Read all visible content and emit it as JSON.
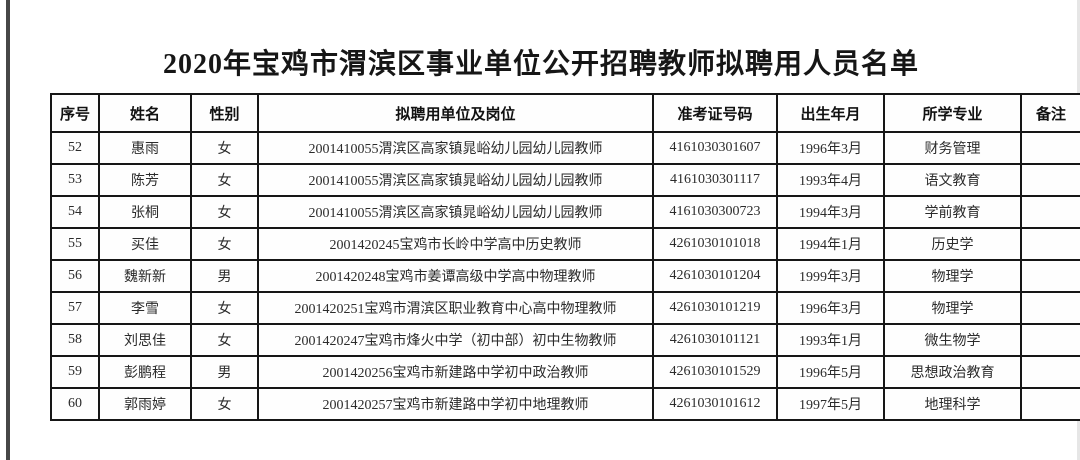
{
  "page": {
    "title": "2020年宝鸡市渭滨区事业单位公开招聘教师拟聘用人员名单"
  },
  "colors": {
    "border": "#161616",
    "text": "#2b2b2b",
    "left_edge": "#474747",
    "background": "#ffffff"
  },
  "table": {
    "columns": [
      {
        "key": "index",
        "label": "序号"
      },
      {
        "key": "name",
        "label": "姓名"
      },
      {
        "key": "gender",
        "label": "性别"
      },
      {
        "key": "unit_position",
        "label": "拟聘用单位及岗位"
      },
      {
        "key": "ticket_no",
        "label": "准考证号码"
      },
      {
        "key": "birth",
        "label": "出生年月"
      },
      {
        "key": "major",
        "label": "所学专业"
      },
      {
        "key": "remarks",
        "label": "备注"
      }
    ],
    "rows": [
      {
        "index": "52",
        "name": "惠雨",
        "gender": "女",
        "unit_position": "2001410055渭滨区高家镇晁峪幼儿园幼儿园教师",
        "ticket_no": "4161030301607",
        "birth": "1996年3月",
        "major": "财务管理",
        "remarks": ""
      },
      {
        "index": "53",
        "name": "陈芳",
        "gender": "女",
        "unit_position": "2001410055渭滨区高家镇晁峪幼儿园幼儿园教师",
        "ticket_no": "4161030301117",
        "birth": "1993年4月",
        "major": "语文教育",
        "remarks": ""
      },
      {
        "index": "54",
        "name": "张桐",
        "gender": "女",
        "unit_position": "2001410055渭滨区高家镇晁峪幼儿园幼儿园教师",
        "ticket_no": "4161030300723",
        "birth": "1994年3月",
        "major": "学前教育",
        "remarks": ""
      },
      {
        "index": "55",
        "name": "买佳",
        "gender": "女",
        "unit_position": "2001420245宝鸡市长岭中学高中历史教师",
        "ticket_no": "4261030101018",
        "birth": "1994年1月",
        "major": "历史学",
        "remarks": ""
      },
      {
        "index": "56",
        "name": "魏新新",
        "gender": "男",
        "unit_position": "2001420248宝鸡市姜谭高级中学高中物理教师",
        "ticket_no": "4261030101204",
        "birth": "1999年3月",
        "major": "物理学",
        "remarks": ""
      },
      {
        "index": "57",
        "name": "李雪",
        "gender": "女",
        "unit_position": "2001420251宝鸡市渭滨区职业教育中心高中物理教师",
        "ticket_no": "4261030101219",
        "birth": "1996年3月",
        "major": "物理学",
        "remarks": ""
      },
      {
        "index": "58",
        "name": "刘思佳",
        "gender": "女",
        "unit_position": "2001420247宝鸡市烽火中学（初中部）初中生物教师",
        "ticket_no": "4261030101121",
        "birth": "1993年1月",
        "major": "微生物学",
        "remarks": ""
      },
      {
        "index": "59",
        "name": "彭鹏程",
        "gender": "男",
        "unit_position": "2001420256宝鸡市新建路中学初中政治教师",
        "ticket_no": "4261030101529",
        "birth": "1996年5月",
        "major": "思想政治教育",
        "remarks": ""
      },
      {
        "index": "60",
        "name": "郭雨婷",
        "gender": "女",
        "unit_position": "2001420257宝鸡市新建路中学初中地理教师",
        "ticket_no": "4261030101612",
        "birth": "1997年5月",
        "major": "地理科学",
        "remarks": ""
      }
    ]
  }
}
